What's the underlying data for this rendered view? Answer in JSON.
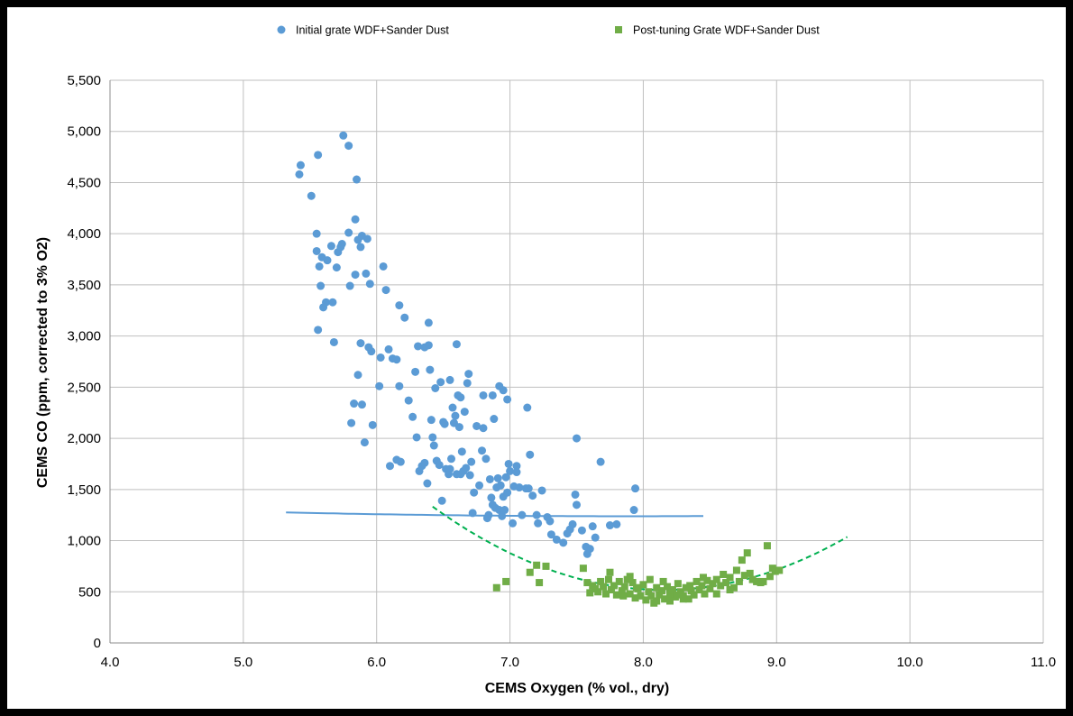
{
  "chart_data": {
    "type": "scatter",
    "title": "",
    "xlabel": "CEMS Oxygen (% vol., dry)",
    "ylabel": "CEMS CO (ppm, corrected to 3% O2)",
    "xlim": [
      4.0,
      11.0
    ],
    "ylim": [
      0,
      5500
    ],
    "x_ticks": [
      4.0,
      5.0,
      6.0,
      7.0,
      8.0,
      9.0,
      10.0,
      11.0
    ],
    "x_tick_labels": [
      "4.0",
      "5.0",
      "6.0",
      "7.0",
      "8.0",
      "9.0",
      "10.0",
      "11.0"
    ],
    "y_ticks": [
      0,
      500,
      1000,
      1500,
      2000,
      2500,
      3000,
      3500,
      4000,
      4500,
      5000,
      5500
    ],
    "y_tick_labels": [
      "0",
      "500",
      "1,000",
      "1,500",
      "2,000",
      "2,500",
      "3,000",
      "3,500",
      "4,000",
      "4,500",
      "5,000",
      "5,500"
    ],
    "grid": true,
    "legend_position": "top",
    "series": [
      {
        "name": "Initial grate WDF+Sander Dust",
        "marker": "circle",
        "color": "#5b9bd5",
        "points": [
          [
            5.42,
            4580
          ],
          [
            5.43,
            4670
          ],
          [
            5.51,
            4370
          ],
          [
            5.56,
            4770
          ],
          [
            5.55,
            4000
          ],
          [
            5.55,
            3830
          ],
          [
            5.57,
            3680
          ],
          [
            5.58,
            3490
          ],
          [
            5.59,
            3770
          ],
          [
            5.6,
            3280
          ],
          [
            5.62,
            3330
          ],
          [
            5.63,
            3740
          ],
          [
            5.66,
            3880
          ],
          [
            5.67,
            3330
          ],
          [
            5.68,
            2940
          ],
          [
            5.56,
            3060
          ],
          [
            5.7,
            3670
          ],
          [
            5.71,
            3820
          ],
          [
            5.73,
            3870
          ],
          [
            5.74,
            3900
          ],
          [
            5.75,
            4960
          ],
          [
            5.79,
            4860
          ],
          [
            5.79,
            4010
          ],
          [
            5.8,
            3490
          ],
          [
            5.81,
            2150
          ],
          [
            5.83,
            2340
          ],
          [
            5.84,
            3600
          ],
          [
            5.84,
            4140
          ],
          [
            5.85,
            4530
          ],
          [
            5.86,
            3940
          ],
          [
            5.86,
            2620
          ],
          [
            5.88,
            2930
          ],
          [
            5.88,
            3870
          ],
          [
            5.89,
            3980
          ],
          [
            5.89,
            2330
          ],
          [
            5.91,
            1960
          ],
          [
            5.92,
            3610
          ],
          [
            5.93,
            3950
          ],
          [
            5.94,
            2890
          ],
          [
            5.95,
            3510
          ],
          [
            5.96,
            2850
          ],
          [
            5.97,
            2130
          ],
          [
            6.02,
            2510
          ],
          [
            6.03,
            2790
          ],
          [
            6.05,
            3680
          ],
          [
            6.07,
            3450
          ],
          [
            6.09,
            2870
          ],
          [
            6.1,
            1730
          ],
          [
            6.12,
            2780
          ],
          [
            6.15,
            2770
          ],
          [
            6.15,
            1790
          ],
          [
            6.17,
            2510
          ],
          [
            6.18,
            1770
          ],
          [
            6.17,
            3300
          ],
          [
            6.21,
            3180
          ],
          [
            6.24,
            2370
          ],
          [
            6.27,
            2210
          ],
          [
            6.29,
            2650
          ],
          [
            6.3,
            2010
          ],
          [
            6.31,
            2900
          ],
          [
            6.32,
            1680
          ],
          [
            6.34,
            1730
          ],
          [
            6.36,
            1760
          ],
          [
            6.38,
            1560
          ],
          [
            6.39,
            3130
          ],
          [
            6.39,
            2910
          ],
          [
            6.4,
            2670
          ],
          [
            6.41,
            2180
          ],
          [
            6.42,
            2010
          ],
          [
            6.43,
            1930
          ],
          [
            6.44,
            2490
          ],
          [
            6.45,
            1780
          ],
          [
            6.47,
            1740
          ],
          [
            6.48,
            2550
          ],
          [
            6.49,
            1390
          ],
          [
            6.5,
            2160
          ],
          [
            6.51,
            2140
          ],
          [
            6.52,
            1700
          ],
          [
            6.54,
            1650
          ],
          [
            6.55,
            1700
          ],
          [
            6.56,
            1800
          ],
          [
            6.57,
            2300
          ],
          [
            6.58,
            2150
          ],
          [
            6.59,
            2220
          ],
          [
            6.6,
            1650
          ],
          [
            6.6,
            2920
          ],
          [
            6.61,
            2420
          ],
          [
            6.62,
            2110
          ],
          [
            6.63,
            1650
          ],
          [
            6.64,
            1870
          ],
          [
            6.65,
            1680
          ],
          [
            6.66,
            2260
          ],
          [
            6.67,
            1710
          ],
          [
            6.68,
            2540
          ],
          [
            6.69,
            2630
          ],
          [
            6.7,
            1640
          ],
          [
            6.71,
            1770
          ],
          [
            6.72,
            1270
          ],
          [
            6.73,
            1470
          ],
          [
            6.75,
            2120
          ],
          [
            6.77,
            1540
          ],
          [
            6.79,
            1880
          ],
          [
            6.8,
            2100
          ],
          [
            6.8,
            2420
          ],
          [
            6.82,
            1800
          ],
          [
            6.83,
            1220
          ],
          [
            6.84,
            1250
          ],
          [
            6.85,
            1600
          ],
          [
            6.86,
            1420
          ],
          [
            6.87,
            1350
          ],
          [
            6.87,
            2420
          ],
          [
            6.88,
            2190
          ],
          [
            6.89,
            1320
          ],
          [
            6.9,
            1520
          ],
          [
            6.91,
            1610
          ],
          [
            6.92,
            1300
          ],
          [
            6.93,
            1540
          ],
          [
            6.94,
            1240
          ],
          [
            6.95,
            1430
          ],
          [
            6.95,
            2470
          ],
          [
            6.96,
            1300
          ],
          [
            6.97,
            1620
          ],
          [
            6.98,
            2380
          ],
          [
            6.98,
            1470
          ],
          [
            6.99,
            1750
          ],
          [
            7.0,
            1680
          ],
          [
            7.02,
            1170
          ],
          [
            7.03,
            1530
          ],
          [
            7.05,
            1730
          ],
          [
            7.05,
            1670
          ],
          [
            7.07,
            1520
          ],
          [
            7.09,
            1250
          ],
          [
            7.12,
            1510
          ],
          [
            7.13,
            2300
          ],
          [
            7.14,
            1510
          ],
          [
            7.15,
            1840
          ],
          [
            7.17,
            1440
          ],
          [
            7.2,
            1250
          ],
          [
            7.21,
            1170
          ],
          [
            7.24,
            1490
          ],
          [
            7.28,
            1230
          ],
          [
            7.3,
            1190
          ],
          [
            7.31,
            1060
          ],
          [
            7.35,
            1010
          ],
          [
            7.4,
            980
          ],
          [
            7.43,
            1070
          ],
          [
            7.45,
            1110
          ],
          [
            7.47,
            1160
          ],
          [
            7.49,
            1450
          ],
          [
            7.5,
            1350
          ],
          [
            7.5,
            2000
          ],
          [
            7.54,
            1100
          ],
          [
            7.57,
            940
          ],
          [
            7.58,
            870
          ],
          [
            7.6,
            920
          ],
          [
            7.62,
            1140
          ],
          [
            7.64,
            1030
          ],
          [
            7.68,
            1770
          ],
          [
            7.75,
            1150
          ],
          [
            7.8,
            1160
          ],
          [
            7.93,
            1300
          ],
          [
            7.94,
            1510
          ],
          [
            6.63,
            2400
          ],
          [
            6.92,
            2510
          ],
          [
            6.55,
            2570
          ],
          [
            6.36,
            2890
          ]
        ]
      },
      {
        "name": "Post-tuning Grate WDF+Sander Dust",
        "marker": "square",
        "color": "#70ad47",
        "points": [
          [
            6.9,
            540
          ],
          [
            6.97,
            600
          ],
          [
            7.15,
            690
          ],
          [
            7.2,
            760
          ],
          [
            7.22,
            590
          ],
          [
            7.27,
            750
          ],
          [
            7.55,
            730
          ],
          [
            7.58,
            590
          ],
          [
            7.6,
            490
          ],
          [
            7.62,
            560
          ],
          [
            7.64,
            530
          ],
          [
            7.66,
            500
          ],
          [
            7.68,
            600
          ],
          [
            7.7,
            550
          ],
          [
            7.72,
            480
          ],
          [
            7.74,
            620
          ],
          [
            7.76,
            520
          ],
          [
            7.78,
            560
          ],
          [
            7.8,
            470
          ],
          [
            7.82,
            600
          ],
          [
            7.84,
            510
          ],
          [
            7.86,
            550
          ],
          [
            7.88,
            620
          ],
          [
            7.9,
            480
          ],
          [
            7.92,
            590
          ],
          [
            7.94,
            440
          ],
          [
            7.96,
            530
          ],
          [
            7.98,
            460
          ],
          [
            8.0,
            570
          ],
          [
            8.02,
            420
          ],
          [
            8.04,
            500
          ],
          [
            8.06,
            460
          ],
          [
            8.08,
            390
          ],
          [
            8.1,
            540
          ],
          [
            8.12,
            470
          ],
          [
            8.14,
            510
          ],
          [
            8.16,
            430
          ],
          [
            8.18,
            550
          ],
          [
            8.2,
            480
          ],
          [
            8.22,
            520
          ],
          [
            8.24,
            450
          ],
          [
            8.26,
            580
          ],
          [
            8.28,
            500
          ],
          [
            8.3,
            460
          ],
          [
            8.32,
            540
          ],
          [
            8.34,
            430
          ],
          [
            8.36,
            510
          ],
          [
            8.38,
            470
          ],
          [
            8.4,
            600
          ],
          [
            8.42,
            520
          ],
          [
            8.44,
            560
          ],
          [
            8.46,
            480
          ],
          [
            8.48,
            610
          ],
          [
            8.5,
            530
          ],
          [
            8.52,
            580
          ],
          [
            8.55,
            620
          ],
          [
            8.58,
            560
          ],
          [
            8.6,
            670
          ],
          [
            8.62,
            590
          ],
          [
            8.65,
            640
          ],
          [
            8.68,
            540
          ],
          [
            8.7,
            710
          ],
          [
            8.72,
            600
          ],
          [
            8.74,
            810
          ],
          [
            8.76,
            660
          ],
          [
            8.78,
            880
          ],
          [
            8.8,
            680
          ],
          [
            8.82,
            620
          ],
          [
            8.85,
            600
          ],
          [
            8.88,
            590
          ],
          [
            8.9,
            600
          ],
          [
            8.93,
            950
          ],
          [
            8.95,
            650
          ],
          [
            8.97,
            730
          ],
          [
            8.99,
            700
          ],
          [
            9.02,
            710
          ],
          [
            7.9,
            650
          ],
          [
            7.75,
            690
          ],
          [
            8.05,
            620
          ],
          [
            8.15,
            600
          ],
          [
            8.35,
            560
          ],
          [
            8.45,
            640
          ],
          [
            8.55,
            480
          ],
          [
            8.25,
            470
          ],
          [
            7.95,
            540
          ],
          [
            8.65,
            520
          ],
          [
            7.85,
            460
          ],
          [
            8.1,
            410
          ],
          [
            8.2,
            410
          ],
          [
            8.3,
            430
          ]
        ]
      }
    ],
    "trendlines": [
      {
        "series": "Initial grate WDF+Sander Dust",
        "type": "polynomial",
        "style": "solid",
        "color": "#5b9bd5",
        "x_range": [
          5.32,
          8.45
        ],
        "coefficients": [
          1238.5,
          7.88,
          5.7
        ]
      },
      {
        "series": "Post-tuning Grate WDF+Sander Dust",
        "type": "polynomial",
        "style": "dashed",
        "color": "#00b050",
        "x_range": [
          6.42,
          9.53
        ],
        "coefficients": [
          518.6,
          8.15,
          272
        ]
      }
    ]
  }
}
